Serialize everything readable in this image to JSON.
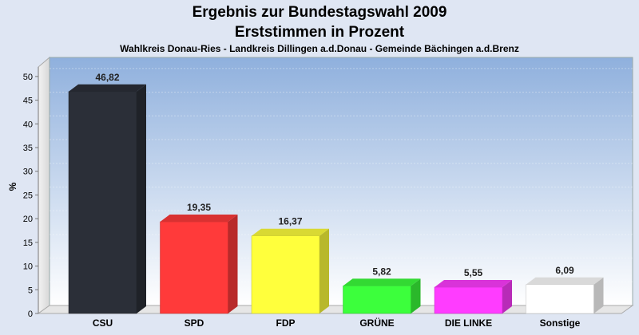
{
  "chart_data": {
    "type": "bar",
    "title": "Ergebnis zur Bundestagswahl 2009",
    "title_line2": "Erststimmen in Prozent",
    "subtitle": "Wahlkreis Donau-Ries - Landkreis Dillingen a.d.Donau - Gemeinde Bächingen a.d.Brenz",
    "ylabel": "%",
    "xlabel": "",
    "ylim": [
      0,
      52
    ],
    "yticks": [
      0,
      5,
      10,
      15,
      20,
      25,
      30,
      35,
      40,
      45,
      50
    ],
    "grid": true,
    "categories": [
      "CSU",
      "SPD",
      "FDP",
      "GRÜNE",
      "DIE LINKE",
      "Sonstige"
    ],
    "values": [
      46.82,
      19.35,
      16.37,
      5.82,
      5.55,
      6.09
    ],
    "value_labels": [
      "46,82",
      "19,35",
      "16,37",
      "5,82",
      "5,55",
      "6,09"
    ],
    "colors": [
      "#2b2f38",
      "#ff3a3a",
      "#ffff3c",
      "#3cff3c",
      "#ff3cff",
      "#ffffff"
    ]
  }
}
